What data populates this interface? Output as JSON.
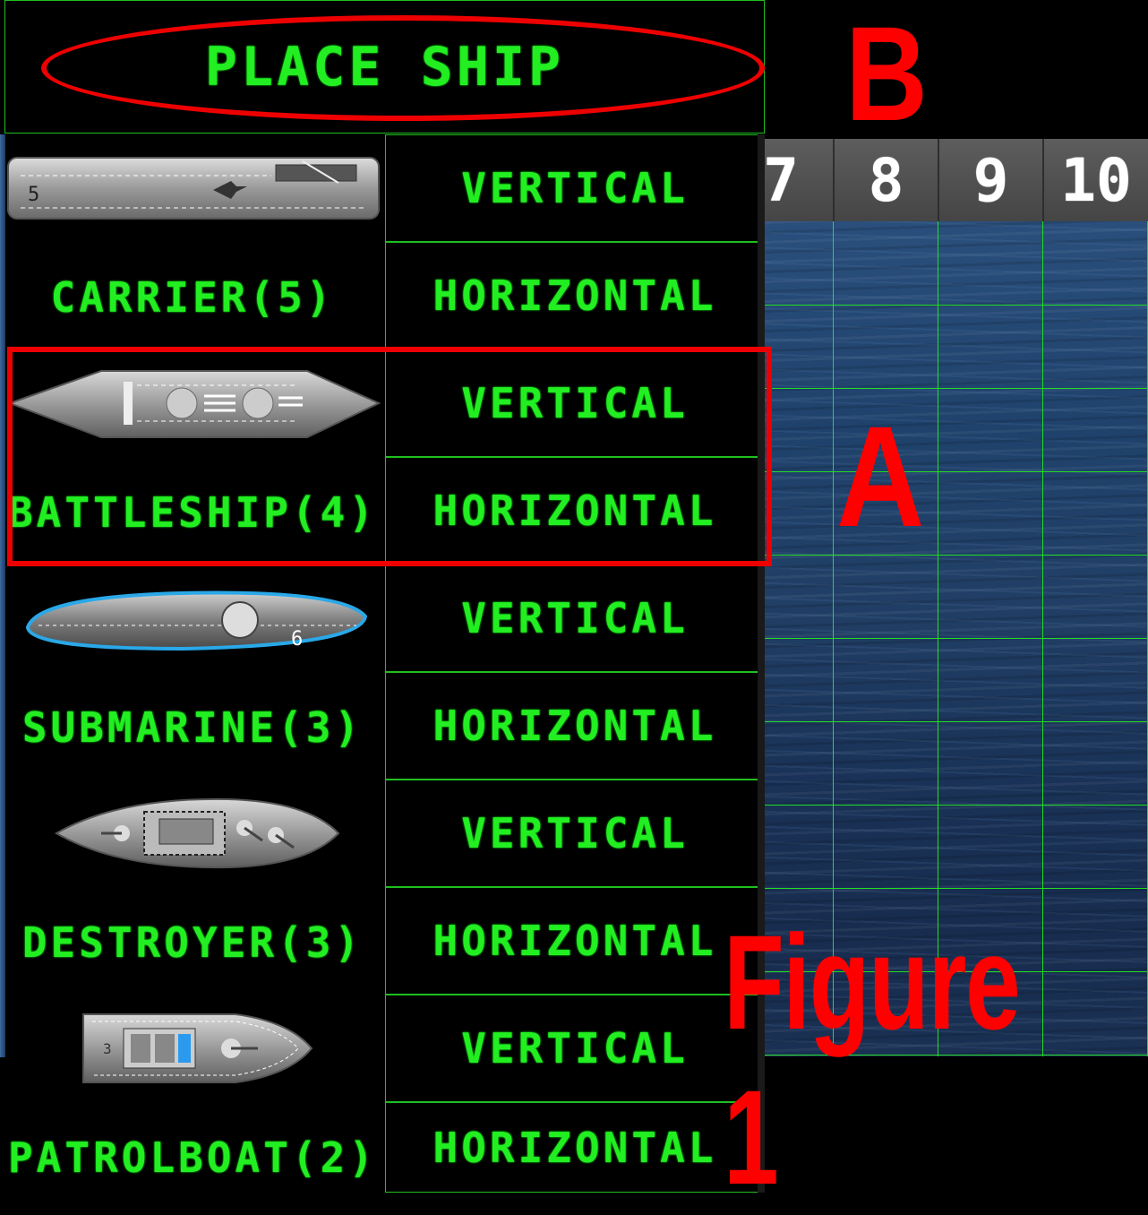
{
  "place_ship": {
    "label": "PLACE SHIP"
  },
  "ships": [
    {
      "name": "CARRIER(5)",
      "icon": "carrier-icon"
    },
    {
      "name": "BATTLESHIP(4)",
      "icon": "battleship-icon"
    },
    {
      "name": "SUBMARINE(3)",
      "icon": "submarine-icon"
    },
    {
      "name": "DESTROYER(3)",
      "icon": "destroyer-icon"
    },
    {
      "name": "PATROLBOAT(2)",
      "icon": "patrolboat-icon"
    }
  ],
  "orientation": {
    "vertical": "VERTICAL",
    "horizontal": "HORIZONTAL"
  },
  "board": {
    "column_headers": [
      "7",
      "8",
      "9",
      "10"
    ]
  },
  "annotations": {
    "a": "A",
    "b": "B",
    "figure": "Figure 1"
  },
  "colors": {
    "lcd_green": "#22ee22",
    "grid_green": "#22dd22",
    "annotation_red": "#ee0000",
    "ocean_blue": "#1f426c"
  }
}
